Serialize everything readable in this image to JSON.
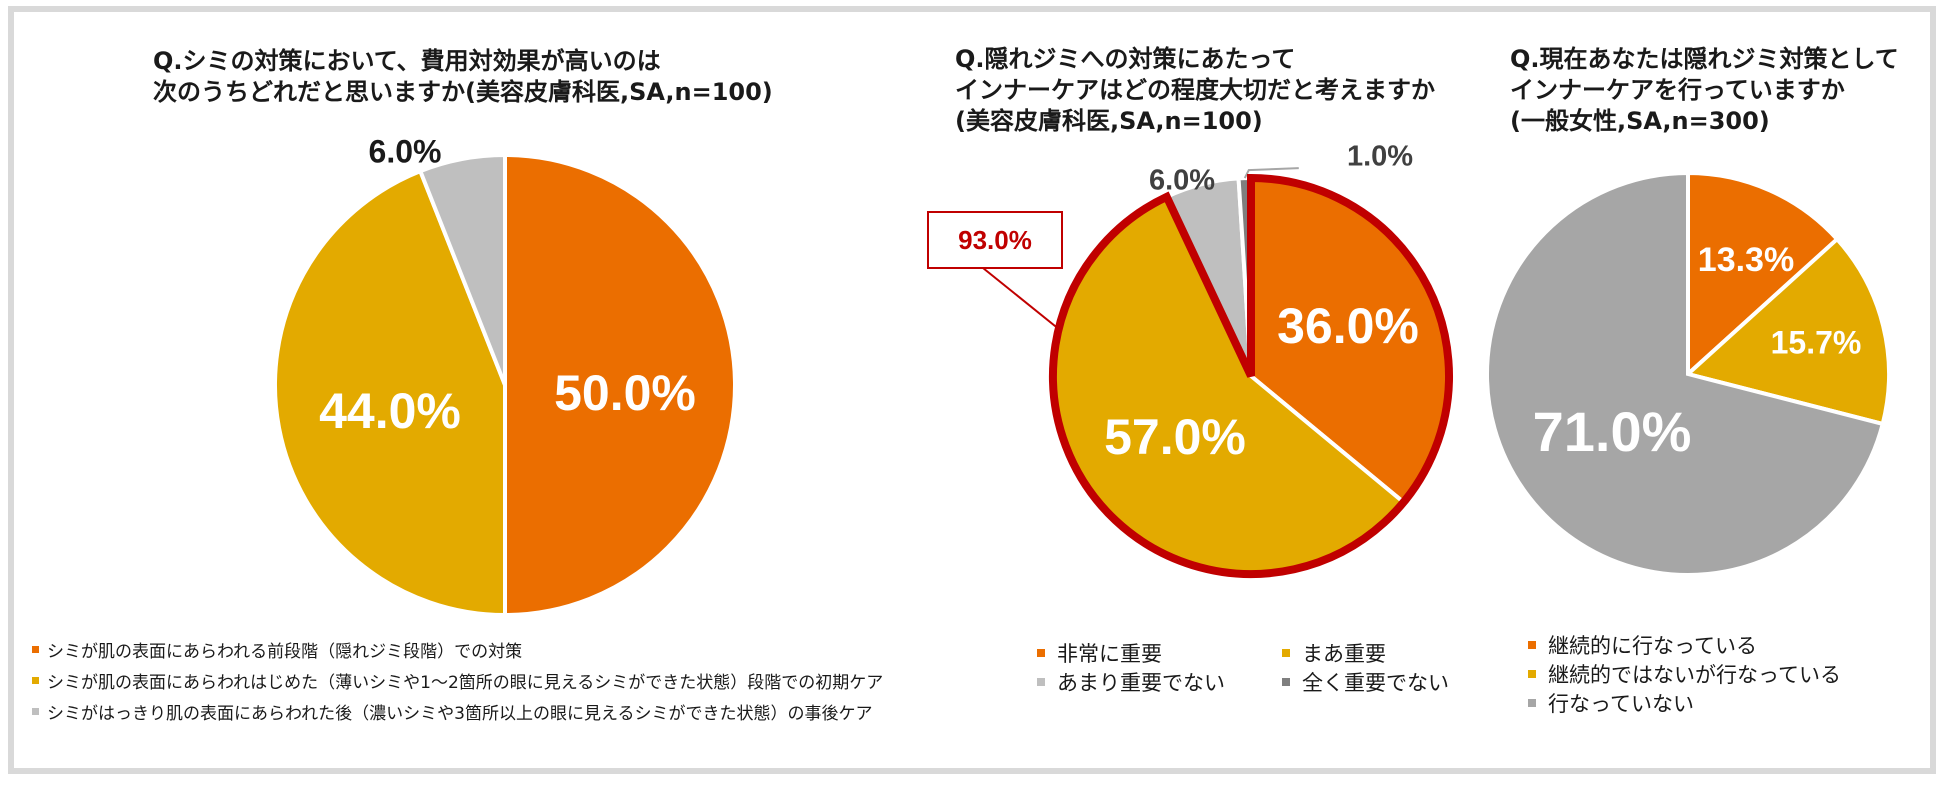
{
  "chart_data": [
    {
      "type": "pie",
      "title_lines": [
        "Q.シミの対策において、費用対効果が高いのは",
        "次のうちどれだと思いますか(美容皮膚科医,SA,n=100)"
      ],
      "slices": [
        {
          "label": "シミが肌の表面にあらわれる前段階（隠れジミ段階）での対策",
          "value": 50.0,
          "value_label": "50.0%",
          "color": "#EB6E00"
        },
        {
          "label": "シミが肌の表面にあらわれはじめた（薄いシミや1〜2箇所の眼に見えるシミができた状態）段階での初期ケア",
          "value": 44.0,
          "value_label": "44.0%",
          "color": "#E3AA00"
        },
        {
          "label": "シミがはっきり肌の表面にあらわれた後（濃いシミや3箇所以上の眼に見えるシミができた状態）の事後ケア",
          "value": 6.0,
          "value_label": "6.0%",
          "color": "#BFBFBF"
        }
      ],
      "legend_placement": "bottom"
    },
    {
      "type": "pie",
      "title_lines": [
        "Q.隠れジミへの対策にあたって",
        "インナーケアはどの程度大切だと考えますか",
        "(美容皮膚科医,SA,n=100)"
      ],
      "slices": [
        {
          "label": "非常に重要",
          "value": 36.0,
          "value_label": "36.0%",
          "color": "#EB6E00"
        },
        {
          "label": "まあ重要",
          "value": 57.0,
          "value_label": "57.0%",
          "color": "#E3AA00"
        },
        {
          "label": "あまり重要でない",
          "value": 6.0,
          "value_label": "6.0%",
          "color": "#BFBFBF"
        },
        {
          "label": "全く重要でない",
          "value": 1.0,
          "value_label": "1.0%",
          "color": "#7F7F7F"
        }
      ],
      "highlight": {
        "label": "93.0%",
        "value": 93.0,
        "color": "#C00000"
      },
      "legend_placement": "bottom"
    },
    {
      "type": "pie",
      "title_lines": [
        "Q.現在あなたは隠れジミ対策として",
        "インナーケアを行っていますか",
        "(一般女性,SA,n=300)"
      ],
      "slices": [
        {
          "label": "継続的に行なっている",
          "value": 13.3,
          "value_label": "13.3%",
          "color": "#EB6E00"
        },
        {
          "label": "継続的ではないが行なっている",
          "value": 15.7,
          "value_label": "15.7%",
          "color": "#E3AA00"
        },
        {
          "label": "行なっていない",
          "value": 71.0,
          "value_label": "71.0%",
          "color": "#A6A6A6"
        }
      ],
      "legend_placement": "bottom"
    }
  ]
}
